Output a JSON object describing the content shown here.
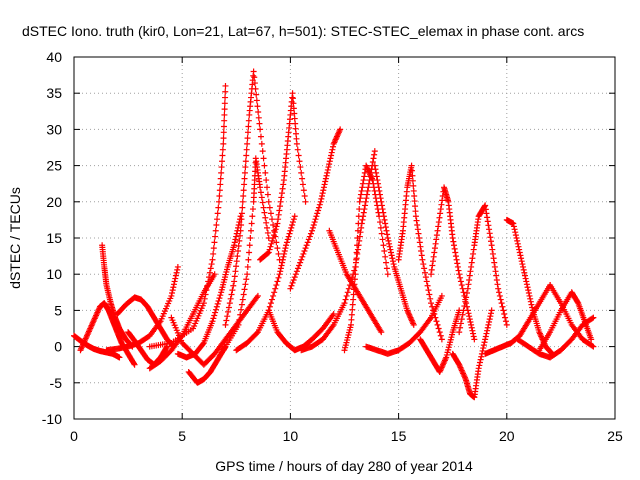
{
  "chart_data": {
    "type": "scatter",
    "title": "dSTEC Iono. truth (kir0, Lon=21, Lat=67, h=501): STEC-STEC_elemax in phase cont. arcs",
    "xlabel": "GPS time / hours of day 280 of year 2014",
    "ylabel": "dSTEC  / TECUs",
    "xlim": [
      0,
      25
    ],
    "ylim": [
      -10,
      40
    ],
    "x_ticks": [
      "0",
      "5",
      "10",
      "15",
      "20",
      "25"
    ],
    "y_ticks": [
      "-10",
      "-5",
      "0",
      "5",
      "10",
      "15",
      "20",
      "25",
      "30",
      "35",
      "40"
    ],
    "grid": true,
    "marker": "+",
    "color": "#ff0000",
    "series": [
      {
        "x": [
          0.0,
          0.3,
          0.6,
          0.9,
          1.2,
          1.5,
          1.8,
          2.1
        ],
        "y": [
          1.5,
          0.8,
          0.2,
          -0.3,
          -0.6,
          -0.8,
          -1.0,
          -1.5
        ]
      },
      {
        "x": [
          0.3,
          0.6,
          0.9,
          1.2,
          1.4,
          1.6,
          1.8,
          2.0,
          2.2,
          2.5,
          2.8
        ],
        "y": [
          -0.5,
          1.5,
          3.5,
          5.5,
          6.0,
          5.0,
          3.5,
          2.0,
          0.5,
          -1.0,
          -2.5
        ]
      },
      {
        "x": [
          1.3,
          1.4,
          1.5,
          1.7,
          1.9,
          2.1,
          2.4,
          2.7
        ],
        "y": [
          14.0,
          11.0,
          8.5,
          6.0,
          4.0,
          2.5,
          1.0,
          0.0
        ]
      },
      {
        "x": [
          2.0,
          2.4,
          2.8,
          3.1,
          3.4,
          3.7,
          4.0,
          4.3,
          4.6
        ],
        "y": [
          4.5,
          5.8,
          6.8,
          6.5,
          5.5,
          4.0,
          2.5,
          1.0,
          0.0
        ]
      },
      {
        "x": [
          2.5,
          2.8,
          3.1,
          3.4,
          3.7,
          4.0,
          4.3
        ],
        "y": [
          2.0,
          0.8,
          -0.5,
          -1.8,
          -2.5,
          -1.5,
          0.0
        ]
      },
      {
        "x": [
          1.5,
          2.0,
          2.5,
          3.0,
          3.5,
          4.0,
          4.5,
          4.8
        ],
        "y": [
          -0.5,
          -0.3,
          0.0,
          0.5,
          1.5,
          3.5,
          7.0,
          11.0
        ]
      },
      {
        "x": [
          3.5,
          4.0,
          4.5,
          5.0,
          5.5,
          6.0,
          6.5
        ],
        "y": [
          -3.0,
          -2.0,
          -0.5,
          1.5,
          4.5,
          7.5,
          10.0
        ]
      },
      {
        "x": [
          4.5,
          5.0,
          5.5,
          6.0,
          6.5,
          7.0,
          7.5,
          8.0,
          8.5
        ],
        "y": [
          4.0,
          0.5,
          -1.0,
          -2.5,
          -1.0,
          1.0,
          3.0,
          5.0,
          7.0
        ]
      },
      {
        "x": [
          5.3,
          5.7,
          6.0,
          6.3,
          6.6,
          6.9,
          7.0
        ],
        "y": [
          -3.5,
          -5.0,
          -4.5,
          -3.5,
          -2.0,
          -0.5,
          0.0
        ]
      },
      {
        "x": [
          4.8,
          5.2,
          5.6,
          6.0,
          6.4,
          6.8,
          7.1,
          7.4,
          7.7
        ],
        "y": [
          -1.0,
          -1.5,
          -1.0,
          0.5,
          3.5,
          7.5,
          11.0,
          14.0,
          18.0
        ]
      },
      {
        "x": [
          3.5,
          4.5,
          5.5,
          6.0,
          6.4,
          6.7,
          6.9,
          7.0
        ],
        "y": [
          0.0,
          0.5,
          2.5,
          6.0,
          12.0,
          20.0,
          28.0,
          36.0
        ]
      },
      {
        "x": [
          7.0,
          7.4,
          7.7,
          7.9,
          8.1,
          8.3,
          8.6,
          9.0,
          9.5
        ],
        "y": [
          3.0,
          9.0,
          16.0,
          24.0,
          32.0,
          38.0,
          30.0,
          20.0,
          12.0
        ]
      },
      {
        "x": [
          7.0,
          7.6,
          8.0,
          8.3,
          8.4,
          8.6,
          9.0
        ],
        "y": [
          0.0,
          3.0,
          10.0,
          20.0,
          26.0,
          22.0,
          15.0
        ]
      },
      {
        "x": [
          8.6,
          9.0,
          9.4,
          9.7,
          9.9,
          10.1,
          10.3,
          10.7
        ],
        "y": [
          12.0,
          13.0,
          17.0,
          23.0,
          29.0,
          35.0,
          28.0,
          20.0
        ]
      },
      {
        "x": [
          7.5,
          8.0,
          8.5,
          9.0,
          9.5,
          9.8,
          10.2
        ],
        "y": [
          -0.5,
          0.5,
          2.0,
          5.0,
          10.0,
          14.0,
          18.0
        ]
      },
      {
        "x": [
          9.0,
          9.4,
          9.8,
          10.2,
          10.6,
          11.0,
          11.5,
          12.0
        ],
        "y": [
          5.0,
          2.0,
          0.5,
          -0.5,
          0.0,
          1.0,
          2.5,
          4.5
        ]
      },
      {
        "x": [
          10.0,
          10.5,
          11.0,
          11.4,
          11.7,
          12.0,
          12.3
        ],
        "y": [
          8.0,
          12.0,
          16.0,
          20.0,
          24.0,
          28.0,
          30.0
        ]
      },
      {
        "x": [
          11.8,
          12.2,
          12.6,
          13.0,
          13.4,
          13.8,
          14.2
        ],
        "y": [
          16.0,
          13.0,
          10.0,
          8.0,
          6.0,
          4.0,
          2.0
        ]
      },
      {
        "x": [
          10.5,
          11.0,
          11.5,
          12.0,
          12.5,
          13.0,
          13.3,
          13.6,
          13.9
        ],
        "y": [
          -0.5,
          0.0,
          1.0,
          3.0,
          6.0,
          11.0,
          17.0,
          22.0,
          27.0
        ]
      },
      {
        "x": [
          12.5,
          12.8,
          13.0,
          13.2,
          13.5,
          13.8,
          14.1,
          14.5
        ],
        "y": [
          -0.5,
          3.0,
          10.0,
          20.0,
          25.0,
          23.0,
          18.0,
          10.0
        ]
      },
      {
        "x": [
          13.9,
          14.2,
          14.5,
          14.8,
          15.1,
          15.4,
          15.7
        ],
        "y": [
          25.0,
          20.0,
          15.0,
          11.0,
          8.0,
          5.0,
          3.0
        ]
      },
      {
        "x": [
          15.0,
          15.2,
          15.4,
          15.6,
          15.8,
          16.1,
          16.5,
          17.0
        ],
        "y": [
          12.0,
          16.0,
          22.0,
          25.0,
          18.0,
          12.0,
          6.0,
          1.0
        ]
      },
      {
        "x": [
          13.5,
          14.0,
          14.5,
          15.0,
          15.5,
          16.0,
          16.5,
          17.0
        ],
        "y": [
          0.0,
          -0.5,
          -1.0,
          -0.5,
          0.5,
          2.0,
          4.0,
          7.0
        ]
      },
      {
        "x": [
          16.0,
          16.3,
          16.6,
          16.9,
          17.2,
          17.5,
          17.8
        ],
        "y": [
          1.0,
          -0.5,
          -2.0,
          -3.5,
          -1.5,
          2.0,
          5.0
        ]
      },
      {
        "x": [
          16.5,
          16.8,
          17.1,
          17.3,
          17.5,
          17.8,
          18.2,
          18.5
        ],
        "y": [
          10.0,
          16.0,
          22.0,
          20.0,
          15.0,
          10.0,
          5.0,
          1.0
        ]
      },
      {
        "x": [
          17.5,
          17.8,
          18.1,
          18.3,
          18.5,
          18.7,
          19.0,
          19.3
        ],
        "y": [
          -1.0,
          -2.5,
          -4.5,
          -6.5,
          -7.0,
          -3.0,
          1.0,
          5.0
        ]
      },
      {
        "x": [
          17.8,
          18.2,
          18.5,
          18.7,
          19.0,
          19.3,
          19.6,
          20.0
        ],
        "y": [
          2.0,
          8.0,
          14.0,
          18.0,
          19.5,
          14.0,
          8.0,
          3.0
        ]
      },
      {
        "x": [
          19.0,
          19.4,
          19.8,
          20.2,
          20.6,
          21.0,
          21.5,
          22.0
        ],
        "y": [
          -1.0,
          -0.5,
          0.0,
          0.5,
          1.5,
          3.5,
          6.0,
          8.5
        ]
      },
      {
        "x": [
          20.0,
          20.3,
          20.6,
          20.9,
          21.2,
          21.5,
          21.8,
          22.1
        ],
        "y": [
          17.5,
          17.0,
          13.0,
          9.0,
          5.0,
          2.0,
          0.0,
          -1.0
        ]
      },
      {
        "x": [
          20.5,
          21.0,
          21.5,
          22.0,
          22.5,
          23.0,
          23.5,
          24.0
        ],
        "y": [
          1.0,
          0.0,
          -1.0,
          -1.5,
          -0.5,
          1.0,
          3.0,
          4.0
        ]
      },
      {
        "x": [
          21.5,
          22.0,
          22.5,
          23.0,
          23.3,
          23.6,
          23.9
        ],
        "y": [
          -0.5,
          2.0,
          5.0,
          7.5,
          6.0,
          3.5,
          1.0
        ]
      },
      {
        "x": [
          22.0,
          22.5,
          23.0,
          23.5,
          24.0
        ],
        "y": [
          8.5,
          6.0,
          3.0,
          1.0,
          0.0
        ]
      }
    ]
  }
}
